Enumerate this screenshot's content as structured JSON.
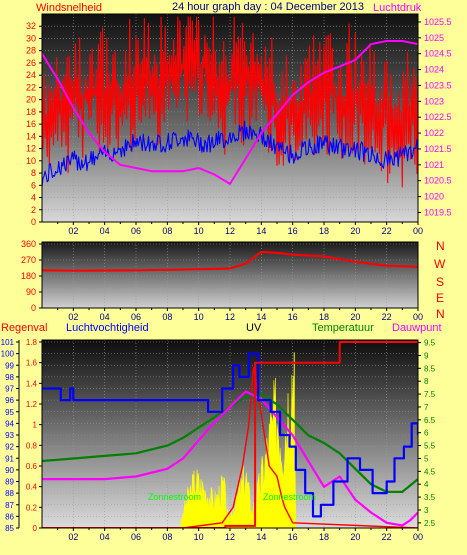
{
  "header": {
    "left_label": "Windsnelheid",
    "title": "24 hour graph day : 04 December 2013",
    "right_label": "Luchtdruk"
  },
  "mid_header": {
    "regen": "Regenval",
    "humidity": "Luchtvochtigheid",
    "uv": "UV",
    "temperature": "Temperatuur",
    "dewpoint": "Dauwpunt"
  },
  "compass": [
    "N",
    "W",
    "S",
    "E",
    "N"
  ],
  "annotations": {
    "zonnestroom_a": "Zonnestroom",
    "zonnestroom_b": "Zonnestroom"
  },
  "colors": {
    "background": "#ffff99",
    "wind": "#ff0000",
    "gust": "#0000ff",
    "pressure": "#ff00ff",
    "direction": "#ff0000",
    "humidity": "#0000ff",
    "temperature": "#008000",
    "dewpoint": "#ff00ff",
    "uv": "#ff0000",
    "solar": "#ffff00",
    "rain": "#ff0000"
  },
  "chart_data": [
    {
      "type": "line",
      "title": "24 hour graph day : 04 December 2013",
      "ylabel_left": "Windsnelheid",
      "ylabel_right": "Luchtdruk",
      "x_ticks": [
        "02",
        "04",
        "06",
        "08",
        "10",
        "12",
        "14",
        "16",
        "18",
        "20",
        "22",
        "00"
      ],
      "ylim_left": [
        0,
        34
      ],
      "yticks_left": [
        0,
        2,
        4,
        6,
        8,
        10,
        12,
        14,
        16,
        18,
        20,
        22,
        24,
        26,
        28,
        30,
        32
      ],
      "ylim_right": [
        1019.2,
        1025.75
      ],
      "yticks_right": [
        1019.5,
        1020,
        1020.5,
        1021,
        1021.5,
        1022,
        1022.5,
        1023,
        1023.5,
        1024,
        1024.5,
        1025,
        1025.5
      ],
      "x_hours": [
        0,
        1,
        2,
        3,
        4,
        5,
        6,
        7,
        8,
        9,
        10,
        11,
        12,
        13,
        14,
        15,
        16,
        17,
        18,
        19,
        20,
        21,
        22,
        23,
        24
      ],
      "series": [
        {
          "name": "Windsnelheid",
          "axis": "left",
          "values": [
            16,
            19,
            20,
            21,
            21,
            21,
            22,
            23,
            24,
            25,
            26,
            24,
            22,
            24,
            23,
            18,
            17,
            19,
            22,
            20,
            21,
            20,
            18,
            17,
            17
          ]
        },
        {
          "name": "",
          "axis": "left",
          "values": [
            7,
            9,
            10,
            10,
            11,
            12,
            13,
            13,
            13,
            14,
            13,
            13,
            14,
            15,
            14,
            12,
            11,
            12,
            13,
            12,
            12,
            11,
            10,
            11,
            12
          ]
        },
        {
          "name": "Luchtdruk",
          "axis": "right",
          "values": [
            1024.5,
            1023.7,
            1022.8,
            1022.0,
            1021.4,
            1021.0,
            1020.9,
            1020.8,
            1020.8,
            1020.8,
            1020.9,
            1020.7,
            1020.4,
            1021.2,
            1022.0,
            1022.6,
            1023.2,
            1023.6,
            1023.9,
            1024.1,
            1024.3,
            1024.8,
            1024.9,
            1024.9,
            1024.8
          ]
        }
      ]
    },
    {
      "type": "line",
      "title": "",
      "x_ticks": [
        "02",
        "04",
        "06",
        "08",
        "10",
        "12",
        "14",
        "16",
        "18",
        "20",
        "22",
        "00"
      ],
      "ylim": [
        0,
        360
      ],
      "yticks": [
        0,
        90,
        180,
        270,
        360
      ],
      "x_hours": [
        0,
        2,
        4,
        6,
        8,
        10,
        12,
        13,
        14,
        15,
        16,
        18,
        20,
        22,
        24
      ],
      "series": [
        {
          "name": "",
          "values": [
            212,
            210,
            211,
            212,
            215,
            218,
            222,
            250,
            315,
            310,
            300,
            290,
            260,
            238,
            232
          ]
        }
      ]
    },
    {
      "type": "line",
      "title": "",
      "x_ticks": [
        "02",
        "04",
        "06",
        "08",
        "10",
        "12",
        "14",
        "16",
        "18",
        "20",
        "22",
        "00"
      ],
      "ylabel_left_rain": "Regenval",
      "ylim_rain": [
        0,
        1.8
      ],
      "yticks_rain": [
        0,
        0.2,
        0.4,
        0.6,
        0.8,
        1,
        1.2,
        1.4,
        1.6,
        1.8
      ],
      "ylabel_left_humidity": "Luchtvochtigheid",
      "ylim_humidity": [
        85,
        101
      ],
      "yticks_humidity": [
        85,
        86,
        87,
        88,
        89,
        90,
        91,
        92,
        93,
        94,
        95,
        96,
        97,
        98,
        99,
        100,
        101
      ],
      "ylim_temperature": [
        2.3,
        9.6
      ],
      "yticks_temperature": [
        2.5,
        3,
        3.5,
        4,
        4.5,
        5,
        5.5,
        6,
        6.5,
        7,
        7.5,
        8,
        8.5,
        9,
        9.5
      ],
      "series": [
        {
          "name": "Regenval",
          "axis": "rain",
          "x_hours": [
            0,
            11.7,
            11.7,
            13.6,
            13.6,
            19.0,
            19.0,
            24
          ],
          "values": [
            0,
            0,
            0.02,
            0.02,
            1.6,
            1.6,
            1.8,
            1.8
          ]
        },
        {
          "name": "Luchtvochtigheid",
          "axis": "humidity",
          "x_hours": [
            0,
            1.2,
            1.2,
            1.8,
            2.0,
            8,
            10.4,
            10.6,
            11.5,
            12.2,
            12.6,
            13.2,
            13.8,
            14.6,
            15.2,
            15.8,
            16.2,
            16.8,
            17.3,
            17.8,
            18.6,
            19.5,
            20.3,
            21.1,
            22.0,
            22.5,
            23.1,
            23.6,
            24
          ],
          "values": [
            97,
            97,
            96,
            97,
            96,
            96,
            96,
            95,
            97,
            99,
            98,
            100,
            96,
            95,
            93,
            92,
            90,
            88,
            86,
            87,
            89,
            91,
            90,
            88,
            89,
            91,
            92,
            94,
            93
          ]
        },
        {
          "name": "Temperatuur",
          "axis": "temperature",
          "x_hours": [
            0,
            2,
            4,
            6,
            8,
            9,
            10,
            11,
            12,
            13,
            14,
            15,
            16,
            17,
            18,
            19,
            20,
            21,
            22,
            23,
            24
          ],
          "values": [
            4.9,
            5.0,
            5.1,
            5.2,
            5.5,
            5.8,
            6.2,
            6.6,
            7.0,
            7.4,
            7.5,
            7.1,
            6.5,
            5.9,
            5.6,
            5.2,
            4.6,
            4.0,
            3.7,
            3.7,
            4.2
          ]
        },
        {
          "name": "Dauwpunt",
          "axis": "temperature",
          "x_hours": [
            0,
            2,
            4,
            6,
            8,
            9,
            10,
            11,
            12,
            13,
            14,
            15,
            16,
            17,
            18,
            19,
            20,
            21,
            22,
            23,
            23.5,
            24
          ],
          "values": [
            4.2,
            4.2,
            4.2,
            4.3,
            4.6,
            5.0,
            5.7,
            6.4,
            7.0,
            7.6,
            7.3,
            6.6,
            5.9,
            4.9,
            3.9,
            4.3,
            3.4,
            2.9,
            2.5,
            2.4,
            2.6,
            2.9
          ]
        },
        {
          "name": "UV",
          "axis": "rain",
          "x_hours": [
            0,
            9,
            11.5,
            12.2,
            12.8,
            13.2,
            13.5,
            14,
            14.5,
            15,
            15.3,
            15.5,
            16,
            24
          ],
          "values": [
            0,
            0,
            0.05,
            0.2,
            0.6,
            1.0,
            1.55,
            1.1,
            0.6,
            0.5,
            0.3,
            0.2,
            0.05,
            0
          ]
        },
        {
          "name": "Zonnestroom",
          "axis": "rain",
          "x_hours": [
            8.8,
            9.2,
            9.8,
            10.4,
            11.0,
            11.6,
            11.9,
            12.4,
            13.0,
            13.4,
            13.8,
            14.2,
            14.6,
            15.0,
            15.4,
            15.8,
            16.1,
            16.2
          ],
          "values": [
            0,
            0.25,
            0.45,
            0.35,
            0.25,
            0.4,
            0.08,
            0.25,
            0.5,
            0.15,
            0.35,
            0.6,
            0.9,
            1.1,
            0.8,
            1.3,
            1.6,
            0
          ]
        }
      ]
    }
  ]
}
